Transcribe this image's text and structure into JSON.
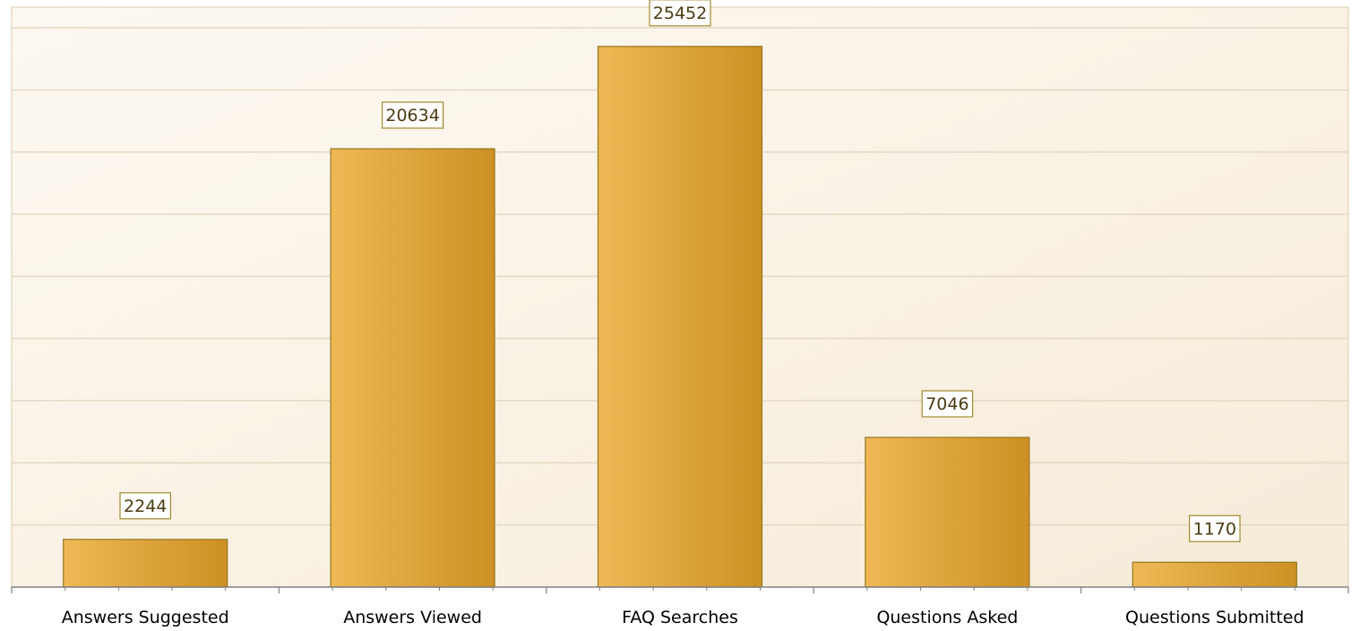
{
  "chart_data": {
    "type": "bar",
    "categories": [
      "Answers Suggested",
      "Answers Viewed",
      "FAQ Searches",
      "Questions Asked",
      "Questions Submitted"
    ],
    "values": [
      2244,
      20634,
      25452,
      7046,
      1170
    ],
    "title": "",
    "xlabel": "",
    "ylabel": "",
    "ylim": [
      0,
      27300
    ],
    "grid": true,
    "legend": "none",
    "data_labels": true
  },
  "colors": {
    "bar_light": "#eeb955",
    "bar_dark": "#cd9024",
    "bar_border": "#96761f",
    "plot_bg_light": "#fdf9f2",
    "plot_bg_dark": "#f6ebd8",
    "grid": "#e3d8c4",
    "plot_border": "#d9c9a9",
    "axis": "#808080",
    "label_box_border": "#a08a2c",
    "label_box_bg": "#ffffff",
    "page_bg": "#ffffff"
  }
}
